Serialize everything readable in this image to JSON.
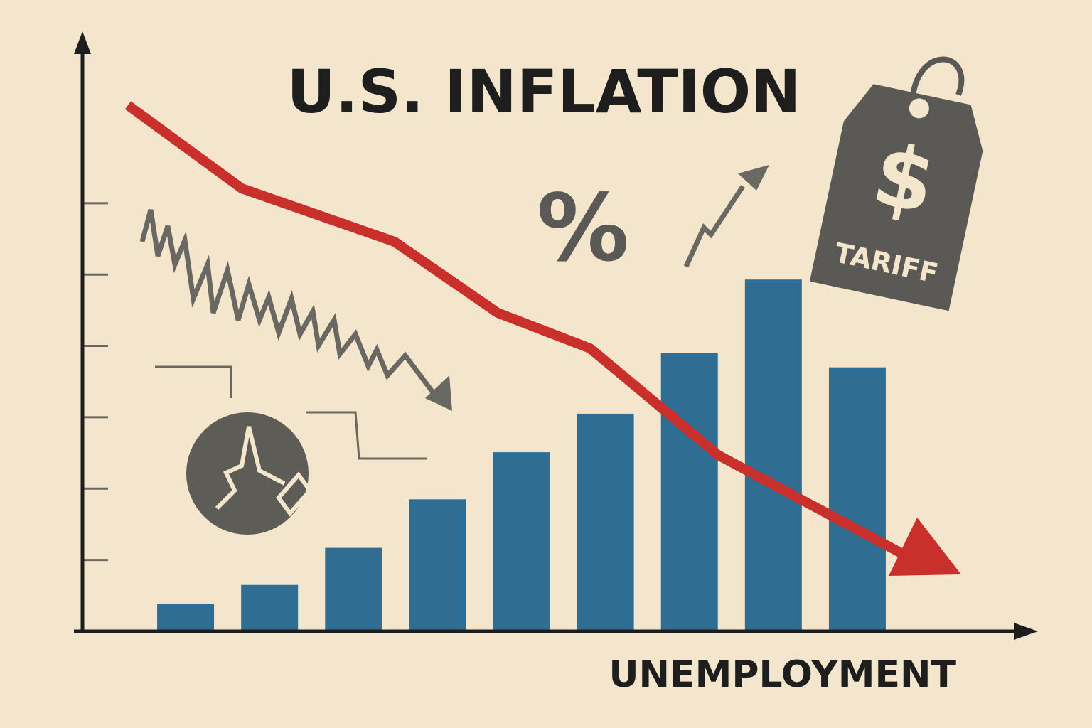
{
  "chart_data": {
    "type": "bar",
    "title": "U.S. INFLATION",
    "x_label": "UNEMPLOYMENT",
    "categories": [
      null,
      null,
      null,
      null,
      null,
      null,
      null,
      null,
      null
    ],
    "values": [
      0.38,
      0.65,
      1.17,
      1.85,
      2.51,
      3.05,
      3.9,
      4.93,
      3.7
    ],
    "color": "#2f6d93",
    "ylim": [
      0,
      8.3
    ],
    "yticks": [
      1,
      2,
      3,
      4,
      5,
      6
    ],
    "grid": false,
    "annotations": [
      "%",
      "$",
      "TARIFF"
    ]
  }
}
